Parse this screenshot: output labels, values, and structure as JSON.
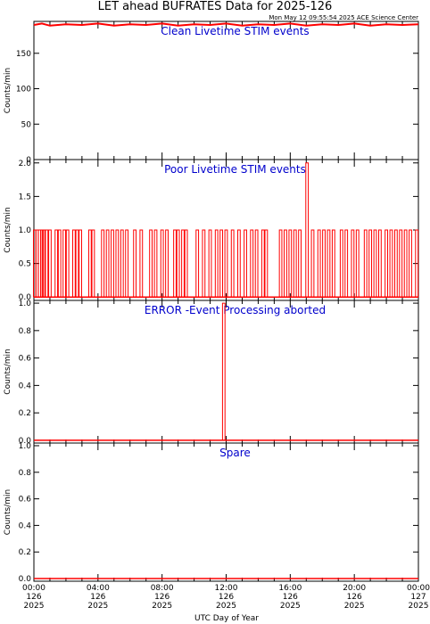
{
  "title": "LET ahead BUFRATES Data for 2025-126",
  "timestamp": "Mon May 12 09:55:54 2025 ACE Science Center",
  "xlabel": "UTC Day of Year",
  "colors": {
    "data": "#ff0000",
    "panel_title": "#0000cc",
    "axes": "#000000"
  },
  "chart_data": [
    {
      "type": "line",
      "panel_title": "Clean Livetime STIM events",
      "ylabel": "Counts/min",
      "ylim": [
        0,
        195
      ],
      "yticks": [
        0,
        50,
        100,
        150
      ],
      "yticklabels": [
        "0",
        "50",
        "100",
        "150"
      ],
      "xlim": [
        0,
        24
      ],
      "series": [
        {
          "values": [
            [
              0,
              190
            ],
            [
              0.5,
              192
            ],
            [
              1,
              189
            ],
            [
              2,
              191
            ],
            [
              3,
              190
            ],
            [
              4,
              192
            ],
            [
              5,
              189
            ],
            [
              6,
              191
            ],
            [
              7,
              190
            ],
            [
              8,
              192
            ],
            [
              9,
              189
            ],
            [
              10,
              191
            ],
            [
              11,
              190
            ],
            [
              12,
              192
            ],
            [
              13,
              189
            ],
            [
              14,
              191
            ],
            [
              15,
              190
            ],
            [
              16,
              192
            ],
            [
              17,
              189
            ],
            [
              18,
              191
            ],
            [
              19,
              190
            ],
            [
              20,
              192
            ],
            [
              21,
              189
            ],
            [
              22,
              191
            ],
            [
              23,
              190
            ],
            [
              24,
              191
            ]
          ]
        }
      ]
    },
    {
      "type": "line",
      "panel_title": "Poor Livetime STIM events",
      "ylabel": "Counts/min",
      "ylim": [
        -0.05,
        2.05
      ],
      "yticks": [
        0,
        0.5,
        1,
        1.5,
        2
      ],
      "yticklabels": [
        "0.0",
        "0.5",
        "1.0",
        "1.5",
        "2.0"
      ],
      "xlim": [
        0,
        24
      ],
      "series": [
        {
          "events": [
            {
              "t": 0.05,
              "v": 1
            },
            {
              "t": 0.2,
              "v": 1
            },
            {
              "t": 0.35,
              "v": 1
            },
            {
              "t": 0.5,
              "v": 1
            },
            {
              "t": 0.6,
              "v": 1
            },
            {
              "t": 0.8,
              "v": 1
            },
            {
              "t": 1.0,
              "v": 1
            },
            {
              "t": 1.4,
              "v": 1
            },
            {
              "t": 1.6,
              "v": 1
            },
            {
              "t": 1.9,
              "v": 1
            },
            {
              "t": 2.1,
              "v": 1
            },
            {
              "t": 2.5,
              "v": 1
            },
            {
              "t": 2.7,
              "v": 1
            },
            {
              "t": 2.9,
              "v": 1
            },
            {
              "t": 3.5,
              "v": 1
            },
            {
              "t": 3.7,
              "v": 1
            },
            {
              "t": 4.3,
              "v": 1
            },
            {
              "t": 4.6,
              "v": 1
            },
            {
              "t": 4.9,
              "v": 1
            },
            {
              "t": 5.2,
              "v": 1
            },
            {
              "t": 5.5,
              "v": 1
            },
            {
              "t": 5.8,
              "v": 1
            },
            {
              "t": 6.3,
              "v": 1
            },
            {
              "t": 6.7,
              "v": 1
            },
            {
              "t": 7.3,
              "v": 1
            },
            {
              "t": 7.6,
              "v": 1
            },
            {
              "t": 8.0,
              "v": 1
            },
            {
              "t": 8.3,
              "v": 1
            },
            {
              "t": 8.8,
              "v": 1
            },
            {
              "t": 9.0,
              "v": 1
            },
            {
              "t": 9.3,
              "v": 1
            },
            {
              "t": 9.5,
              "v": 1
            },
            {
              "t": 10.2,
              "v": 1
            },
            {
              "t": 10.6,
              "v": 1
            },
            {
              "t": 11.0,
              "v": 1
            },
            {
              "t": 11.4,
              "v": 1
            },
            {
              "t": 11.7,
              "v": 1
            },
            {
              "t": 12.0,
              "v": 1
            },
            {
              "t": 12.4,
              "v": 1
            },
            {
              "t": 12.8,
              "v": 1
            },
            {
              "t": 13.2,
              "v": 1
            },
            {
              "t": 13.6,
              "v": 1
            },
            {
              "t": 13.9,
              "v": 1
            },
            {
              "t": 14.3,
              "v": 1
            },
            {
              "t": 14.5,
              "v": 1
            },
            {
              "t": 15.4,
              "v": 1
            },
            {
              "t": 15.7,
              "v": 1
            },
            {
              "t": 16.0,
              "v": 1
            },
            {
              "t": 16.3,
              "v": 1
            },
            {
              "t": 16.6,
              "v": 1
            },
            {
              "t": 17.05,
              "v": 2
            },
            {
              "t": 17.4,
              "v": 1
            },
            {
              "t": 17.8,
              "v": 1
            },
            {
              "t": 18.1,
              "v": 1
            },
            {
              "t": 18.4,
              "v": 1
            },
            {
              "t": 18.7,
              "v": 1
            },
            {
              "t": 19.2,
              "v": 1
            },
            {
              "t": 19.5,
              "v": 1
            },
            {
              "t": 19.9,
              "v": 1
            },
            {
              "t": 20.2,
              "v": 1
            },
            {
              "t": 20.7,
              "v": 1
            },
            {
              "t": 21.0,
              "v": 1
            },
            {
              "t": 21.3,
              "v": 1
            },
            {
              "t": 21.6,
              "v": 1
            },
            {
              "t": 22.0,
              "v": 1
            },
            {
              "t": 22.3,
              "v": 1
            },
            {
              "t": 22.6,
              "v": 1
            },
            {
              "t": 22.9,
              "v": 1
            },
            {
              "t": 23.2,
              "v": 1
            },
            {
              "t": 23.5,
              "v": 1
            },
            {
              "t": 23.9,
              "v": 1
            }
          ]
        }
      ]
    },
    {
      "type": "line",
      "panel_title": "ERROR -Event Processing aborted",
      "ylabel": "Counts/min",
      "ylim": [
        -0.02,
        1.02
      ],
      "yticks": [
        0,
        0.2,
        0.4,
        0.6,
        0.8,
        1.0
      ],
      "yticklabels": [
        "0.0",
        "0.2",
        "0.4",
        "0.6",
        "0.8",
        "1.0"
      ],
      "xlim": [
        0,
        24
      ],
      "series": [
        {
          "events": [
            {
              "t": 11.85,
              "v": 1
            }
          ]
        }
      ]
    },
    {
      "type": "line",
      "panel_title": "Spare",
      "ylabel": "Counts/min",
      "ylim": [
        -0.02,
        1.02
      ],
      "yticks": [
        0,
        0.2,
        0.4,
        0.6,
        0.8,
        1.0
      ],
      "yticklabels": [
        "0.0",
        "0.2",
        "0.4",
        "0.6",
        "0.8",
        "1.0"
      ],
      "xlim": [
        0,
        24
      ],
      "series": [
        {
          "events": []
        }
      ]
    }
  ],
  "xticks": [
    {
      "t": 0,
      "time": "00:00",
      "doy": "126",
      "year": "2025"
    },
    {
      "t": 4,
      "time": "04:00",
      "doy": "126",
      "year": "2025"
    },
    {
      "t": 8,
      "time": "08:00",
      "doy": "126",
      "year": "2025"
    },
    {
      "t": 12,
      "time": "12:00",
      "doy": "126",
      "year": "2025"
    },
    {
      "t": 16,
      "time": "16:00",
      "doy": "126",
      "year": "2025"
    },
    {
      "t": 20,
      "time": "20:00",
      "doy": "126",
      "year": "2025"
    },
    {
      "t": 24,
      "time": "00:00",
      "doy": "127",
      "year": "2025"
    }
  ]
}
